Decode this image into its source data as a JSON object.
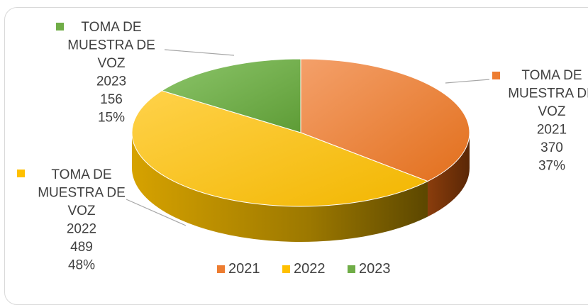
{
  "chart_data": {
    "type": "pie",
    "title": "",
    "legend_position": "bottom",
    "series": [
      {
        "category": "2021",
        "label_lines": [
          "TOMA DE",
          "MUESTRA DE",
          "VOZ",
          "2021",
          "370",
          "37%"
        ],
        "value": 370,
        "percent": 37,
        "color": "#ED7D31"
      },
      {
        "category": "2022",
        "label_lines": [
          "TOMA DE",
          "MUESTRA DE",
          "VOZ",
          "2022",
          "489",
          "48%"
        ],
        "value": 489,
        "percent": 48,
        "color": "#FFC000"
      },
      {
        "category": "2023",
        "label_lines": [
          "TOMA DE",
          "MUESTRA DE",
          "VOZ",
          "2023",
          "156",
          "15%"
        ],
        "value": 156,
        "percent": 15,
        "color": "#70AD47"
      }
    ]
  }
}
